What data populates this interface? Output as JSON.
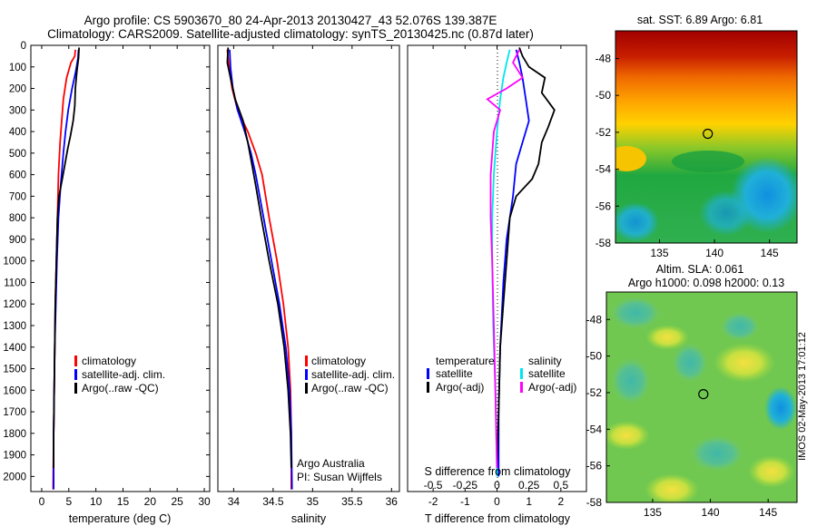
{
  "header": {
    "line1": "Argo profile: CS 5903670_80 24-Apr-2013 20130427_43 52.076S 139.387E",
    "line2": "Climatology: CARS2009. Satellite-adjusted climatology: synTS_20130425.nc (0.87d later)"
  },
  "side_note": "IMOS 02-May-2013 17:01:12",
  "colors": {
    "clim": "#ff0000",
    "sat": "#0000ff",
    "argo": "#000000",
    "sat_s": "#00e5ee",
    "argo_s": "#ff00ff"
  },
  "chart_data": [
    {
      "type": "line",
      "xlabel": "temperature (deg C)",
      "ylabel": "",
      "xlim": [
        -2,
        31
      ],
      "ylim": [
        2070,
        0
      ],
      "xticks": [
        0,
        5,
        10,
        15,
        20,
        25,
        30
      ],
      "yticks": [
        0,
        100,
        200,
        300,
        400,
        500,
        600,
        700,
        800,
        900,
        1000,
        1100,
        1200,
        1300,
        1400,
        1500,
        1600,
        1700,
        1800,
        1900,
        2000
      ],
      "legend": [
        "climatology",
        "satellite-adj. clim.",
        "Argo(..raw -QC)"
      ],
      "series": [
        {
          "name": "climatology",
          "color": "#ff0000",
          "points": [
            [
              6.2,
              20
            ],
            [
              6.1,
              50
            ],
            [
              5.4,
              80
            ],
            [
              4.6,
              150
            ],
            [
              4.0,
              250
            ],
            [
              3.7,
              350
            ],
            [
              3.4,
              450
            ],
            [
              3.1,
              600
            ],
            [
              2.9,
              800
            ],
            [
              2.7,
              1000
            ],
            [
              2.5,
              1200
            ],
            [
              2.4,
              1400
            ],
            [
              2.3,
              1600
            ],
            [
              2.2,
              1800
            ],
            [
              2.1,
              2060
            ]
          ]
        },
        {
          "name": "satellite-adj. clim.",
          "color": "#0000ff",
          "points": [
            [
              6.8,
              20
            ],
            [
              6.7,
              60
            ],
            [
              6.3,
              120
            ],
            [
              5.6,
              200
            ],
            [
              4.9,
              300
            ],
            [
              4.4,
              400
            ],
            [
              4.0,
              500
            ],
            [
              3.5,
              650
            ],
            [
              3.1,
              800
            ],
            [
              2.8,
              1000
            ],
            [
              2.6,
              1200
            ],
            [
              2.4,
              1400
            ],
            [
              2.3,
              1600
            ],
            [
              2.2,
              1800
            ],
            [
              2.2,
              2060
            ]
          ]
        },
        {
          "name": "Argo(..raw -QC)",
          "color": "#000000",
          "points": [
            [
              6.9,
              10
            ],
            [
              6.8,
              60
            ],
            [
              6.5,
              120
            ],
            [
              6.2,
              200
            ],
            [
              6.1,
              280
            ],
            [
              5.8,
              350
            ],
            [
              5.3,
              420
            ],
            [
              4.8,
              480
            ],
            [
              4.3,
              550
            ],
            [
              3.8,
              620
            ],
            [
              3.2,
              700
            ],
            [
              2.9,
              800
            ],
            [
              2.7,
              1000
            ],
            [
              2.5,
              1200
            ],
            [
              2.4,
              1400
            ],
            [
              2.3,
              1600
            ],
            [
              2.2,
              1800
            ],
            [
              2.2,
              1960
            ]
          ]
        }
      ]
    },
    {
      "type": "line",
      "xlabel": "salinity",
      "ylabel": "",
      "xlim": [
        33.8,
        36.1
      ],
      "ylim": [
        2070,
        0
      ],
      "xticks": [
        34,
        34.5,
        35,
        35.5,
        36
      ],
      "legend": [
        "climatology",
        "satellite-adj. clim.",
        "Argo(..raw -QC)"
      ],
      "annotation": [
        "Argo Australia",
        "PI: Susan Wijffels"
      ],
      "series": [
        {
          "name": "climatology",
          "color": "#ff0000",
          "points": [
            [
              33.92,
              20
            ],
            [
              33.94,
              100
            ],
            [
              33.98,
              200
            ],
            [
              34.05,
              300
            ],
            [
              34.18,
              400
            ],
            [
              34.28,
              500
            ],
            [
              34.36,
              600
            ],
            [
              34.45,
              800
            ],
            [
              34.55,
              1000
            ],
            [
              34.63,
              1200
            ],
            [
              34.69,
              1400
            ],
            [
              34.72,
              1600
            ],
            [
              34.73,
              1800
            ],
            [
              34.73,
              2060
            ]
          ]
        },
        {
          "name": "satellite-adj. clim.",
          "color": "#0000ff",
          "points": [
            [
              33.95,
              20
            ],
            [
              33.96,
              100
            ],
            [
              33.99,
              200
            ],
            [
              34.05,
              300
            ],
            [
              34.14,
              400
            ],
            [
              34.22,
              500
            ],
            [
              34.28,
              600
            ],
            [
              34.38,
              800
            ],
            [
              34.48,
              1000
            ],
            [
              34.58,
              1200
            ],
            [
              34.66,
              1400
            ],
            [
              34.71,
              1600
            ],
            [
              34.73,
              1800
            ],
            [
              34.74,
              2060
            ]
          ]
        },
        {
          "name": "Argo(..raw -QC)",
          "color": "#000000",
          "points": [
            [
              33.93,
              10
            ],
            [
              33.92,
              80
            ],
            [
              33.96,
              150
            ],
            [
              34.02,
              250
            ],
            [
              34.12,
              350
            ],
            [
              34.18,
              450
            ],
            [
              34.23,
              550
            ],
            [
              34.28,
              650
            ],
            [
              34.35,
              800
            ],
            [
              34.45,
              1000
            ],
            [
              34.56,
              1200
            ],
            [
              34.64,
              1400
            ],
            [
              34.69,
              1600
            ],
            [
              34.72,
              1800
            ],
            [
              34.73,
              1960
            ]
          ]
        }
      ]
    },
    {
      "type": "line",
      "xlabel": "T difference from climatology",
      "xlabel_top": "S difference from climatology",
      "xlim": [
        -2.8,
        2.8
      ],
      "ylim": [
        2070,
        0
      ],
      "xticks": [
        -2,
        -1,
        0,
        1,
        2
      ],
      "xticks_s_labels": [
        "-0.5",
        "-0.25",
        "0",
        "0.25",
        "0.5"
      ],
      "legend_left": {
        "title": "temperature",
        "items": [
          "satellite",
          "Argo(-adj)"
        ]
      },
      "legend_right": {
        "title": "salinity",
        "items": [
          "satellite",
          "Argo(-adj)"
        ]
      },
      "series": [
        {
          "name": "satellite",
          "color": "#0000ff",
          "points": [
            [
              0.6,
              20
            ],
            [
              0.7,
              80
            ],
            [
              0.8,
              150
            ],
            [
              0.9,
              250
            ],
            [
              1.0,
              350
            ],
            [
              0.8,
              450
            ],
            [
              0.6,
              550
            ],
            [
              0.5,
              700
            ],
            [
              0.3,
              900
            ],
            [
              0.2,
              1100
            ],
            [
              0.1,
              1400
            ],
            [
              0.05,
              1700
            ],
            [
              0.05,
              2000
            ]
          ]
        },
        {
          "name": "Argo(-adj)",
          "color": "#000000",
          "points": [
            [
              0.7,
              10
            ],
            [
              0.8,
              50
            ],
            [
              1.0,
              100
            ],
            [
              1.5,
              150
            ],
            [
              1.4,
              220
            ],
            [
              1.8,
              300
            ],
            [
              1.6,
              380
            ],
            [
              1.4,
              450
            ],
            [
              1.3,
              550
            ],
            [
              1.1,
              620
            ],
            [
              0.6,
              700
            ],
            [
              0.4,
              800
            ],
            [
              0.3,
              1000
            ],
            [
              0.2,
              1200
            ],
            [
              0.1,
              1400
            ],
            [
              0.05,
              1700
            ],
            [
              0.0,
              1960
            ]
          ]
        },
        {
          "name": "satellite",
          "color": "#00e5ee",
          "points": [
            [
              0.4,
              20
            ],
            [
              0.3,
              80
            ],
            [
              0.2,
              150
            ],
            [
              0.1,
              250
            ],
            [
              0.0,
              400
            ],
            [
              -0.1,
              600
            ],
            [
              -0.15,
              800
            ],
            [
              -0.15,
              1000
            ],
            [
              -0.12,
              1300
            ],
            [
              -0.05,
              1600
            ],
            [
              0.0,
              2000
            ]
          ]
        },
        {
          "name": "Argo(-adj)",
          "color": "#ff00ff",
          "points": [
            [
              0.7,
              20
            ],
            [
              0.5,
              80
            ],
            [
              0.8,
              150
            ],
            [
              0.3,
              200
            ],
            [
              -0.3,
              250
            ],
            [
              0.1,
              300
            ],
            [
              -0.1,
              400
            ],
            [
              -0.2,
              600
            ],
            [
              -0.2,
              800
            ],
            [
              -0.15,
              1000
            ],
            [
              -0.1,
              1300
            ],
            [
              -0.05,
              1600
            ],
            [
              0.0,
              1960
            ]
          ]
        }
      ]
    },
    {
      "type": "heatmap",
      "title": "sat. SST: 6.89 Argo: 6.81",
      "xlim": [
        131,
        147.5
      ],
      "ylim": [
        -58,
        -46.5
      ],
      "xticks": [
        135,
        140,
        145
      ],
      "yticks": [
        -58,
        -56,
        -54,
        -52,
        -50,
        -48
      ],
      "marker": [
        139.39,
        -52.08
      ]
    },
    {
      "type": "heatmap",
      "title": "Altim. SLA: 0.061",
      "subtitle": "Argo h1000: 0.098 h2000: 0.13",
      "xlim": [
        131,
        147.5
      ],
      "ylim": [
        -58,
        -46.5
      ],
      "xticks": [
        135,
        140,
        145
      ],
      "yticks": [
        -58,
        -56,
        -54,
        -52,
        -50,
        -48
      ],
      "marker": [
        139.39,
        -52.08
      ]
    }
  ]
}
